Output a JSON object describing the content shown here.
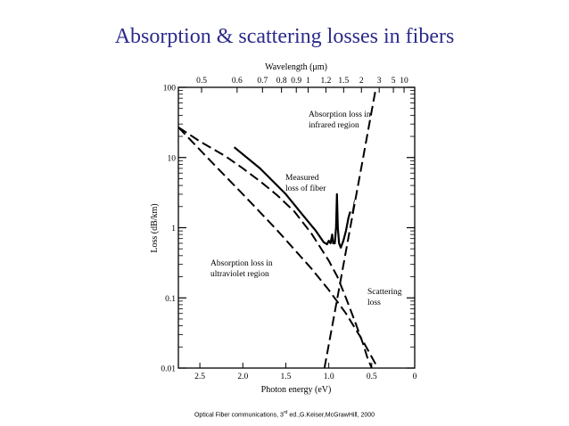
{
  "slide": {
    "title": "Absorption & scattering losses in fibers",
    "caption_pre": "Optical Fiber communications, 3",
    "caption_sup": "rd",
    "caption_post": " ed.,G.Keiser,McGrawHill, 2000"
  },
  "chart_data": {
    "type": "line",
    "title": "",
    "xlabel": "Photon energy (eV)",
    "x2label": "Wavelength (μm)",
    "ylabel": "Loss (dB/km)",
    "xlim": [
      2.75,
      0
    ],
    "x_reversed": true,
    "ylim": [
      0.01,
      100
    ],
    "y_scale": "log",
    "grid": false,
    "legend": "none",
    "x_ticks": [
      {
        "value": 2.5,
        "label": "2.5"
      },
      {
        "value": 2.0,
        "label": "2.0"
      },
      {
        "value": 1.5,
        "label": "1.5"
      },
      {
        "value": 1.0,
        "label": "1.0"
      },
      {
        "value": 0.5,
        "label": "0.5"
      },
      {
        "value": 0,
        "label": "0"
      }
    ],
    "x2_ticks": [
      {
        "value": 0.5,
        "label": "0.5"
      },
      {
        "value": 0.6,
        "label": "0.6"
      },
      {
        "value": 0.7,
        "label": "0.7"
      },
      {
        "value": 0.8,
        "label": "0.8"
      },
      {
        "value": 0.9,
        "label": "0.9"
      },
      {
        "value": 1.0,
        "label": "1"
      },
      {
        "value": 1.2,
        "label": "1.2"
      },
      {
        "value": 1.5,
        "label": "1.5"
      },
      {
        "value": 2,
        "label": "2"
      },
      {
        "value": 3,
        "label": "3"
      },
      {
        "value": 5,
        "label": "5"
      },
      {
        "value": 10,
        "label": "10"
      }
    ],
    "y_ticks": [
      {
        "value": 100,
        "label": "100"
      },
      {
        "value": 10,
        "label": "10"
      },
      {
        "value": 1,
        "label": "1"
      },
      {
        "value": 0.1,
        "label": "0.1"
      },
      {
        "value": 0.01,
        "label": "0.01"
      }
    ],
    "series": [
      {
        "id": "measured",
        "style": "solid",
        "points": [
          [
            2.1,
            14
          ],
          [
            1.8,
            7
          ],
          [
            1.5,
            3
          ],
          [
            1.3,
            1.5
          ],
          [
            1.15,
            0.9
          ],
          [
            1.06,
            0.62
          ],
          [
            1.02,
            0.58
          ],
          [
            1.0,
            0.65
          ],
          [
            0.98,
            0.6
          ],
          [
            0.96,
            0.8
          ],
          [
            0.95,
            0.6
          ],
          [
            0.93,
            0.6
          ],
          [
            0.915,
            1.0
          ],
          [
            0.905,
            3.0
          ],
          [
            0.895,
            1.0
          ],
          [
            0.88,
            0.6
          ],
          [
            0.86,
            0.52
          ],
          [
            0.83,
            0.65
          ],
          [
            0.8,
            0.9
          ],
          [
            0.77,
            1.4
          ],
          [
            0.75,
            1.7
          ]
        ]
      },
      {
        "id": "scattering",
        "style": "dashed",
        "points": [
          [
            2.75,
            27
          ],
          [
            2.5,
            17
          ],
          [
            2.2,
            10.4
          ],
          [
            2.0,
            7.0
          ],
          [
            1.8,
            4.6
          ],
          [
            1.6,
            2.9
          ],
          [
            1.4,
            1.7
          ],
          [
            1.2,
            0.82
          ],
          [
            1.0,
            0.34
          ],
          [
            0.9,
            0.2
          ],
          [
            0.8,
            0.1
          ],
          [
            0.7,
            0.048
          ],
          [
            0.6,
            0.022
          ],
          [
            0.55,
            0.014
          ],
          [
            0.5,
            0.01
          ]
        ]
      },
      {
        "id": "uv",
        "style": "dashed",
        "points": [
          [
            2.75,
            27
          ],
          [
            2.4,
            9.6
          ],
          [
            2.0,
            3.0
          ],
          [
            1.6,
            0.92
          ],
          [
            1.2,
            0.26
          ],
          [
            1.0,
            0.13
          ],
          [
            0.8,
            0.06
          ],
          [
            0.6,
            0.024
          ],
          [
            0.43,
            0.01
          ]
        ]
      },
      {
        "id": "ir",
        "style": "dashed",
        "points": [
          [
            1.05,
            0.01
          ],
          [
            0.9,
            0.1
          ],
          [
            0.75,
            1.0
          ],
          [
            0.6,
            10
          ],
          [
            0.45,
            100
          ]
        ]
      }
    ],
    "annotations": [
      {
        "line1": "Absorption loss in",
        "line2": "infrared region"
      },
      {
        "line1": "Measured",
        "line2": "loss of fiber"
      },
      {
        "line1": "Absorption loss in",
        "line2": "ultraviolet region"
      },
      {
        "line1": "Scattering",
        "line2": "loss"
      }
    ]
  }
}
